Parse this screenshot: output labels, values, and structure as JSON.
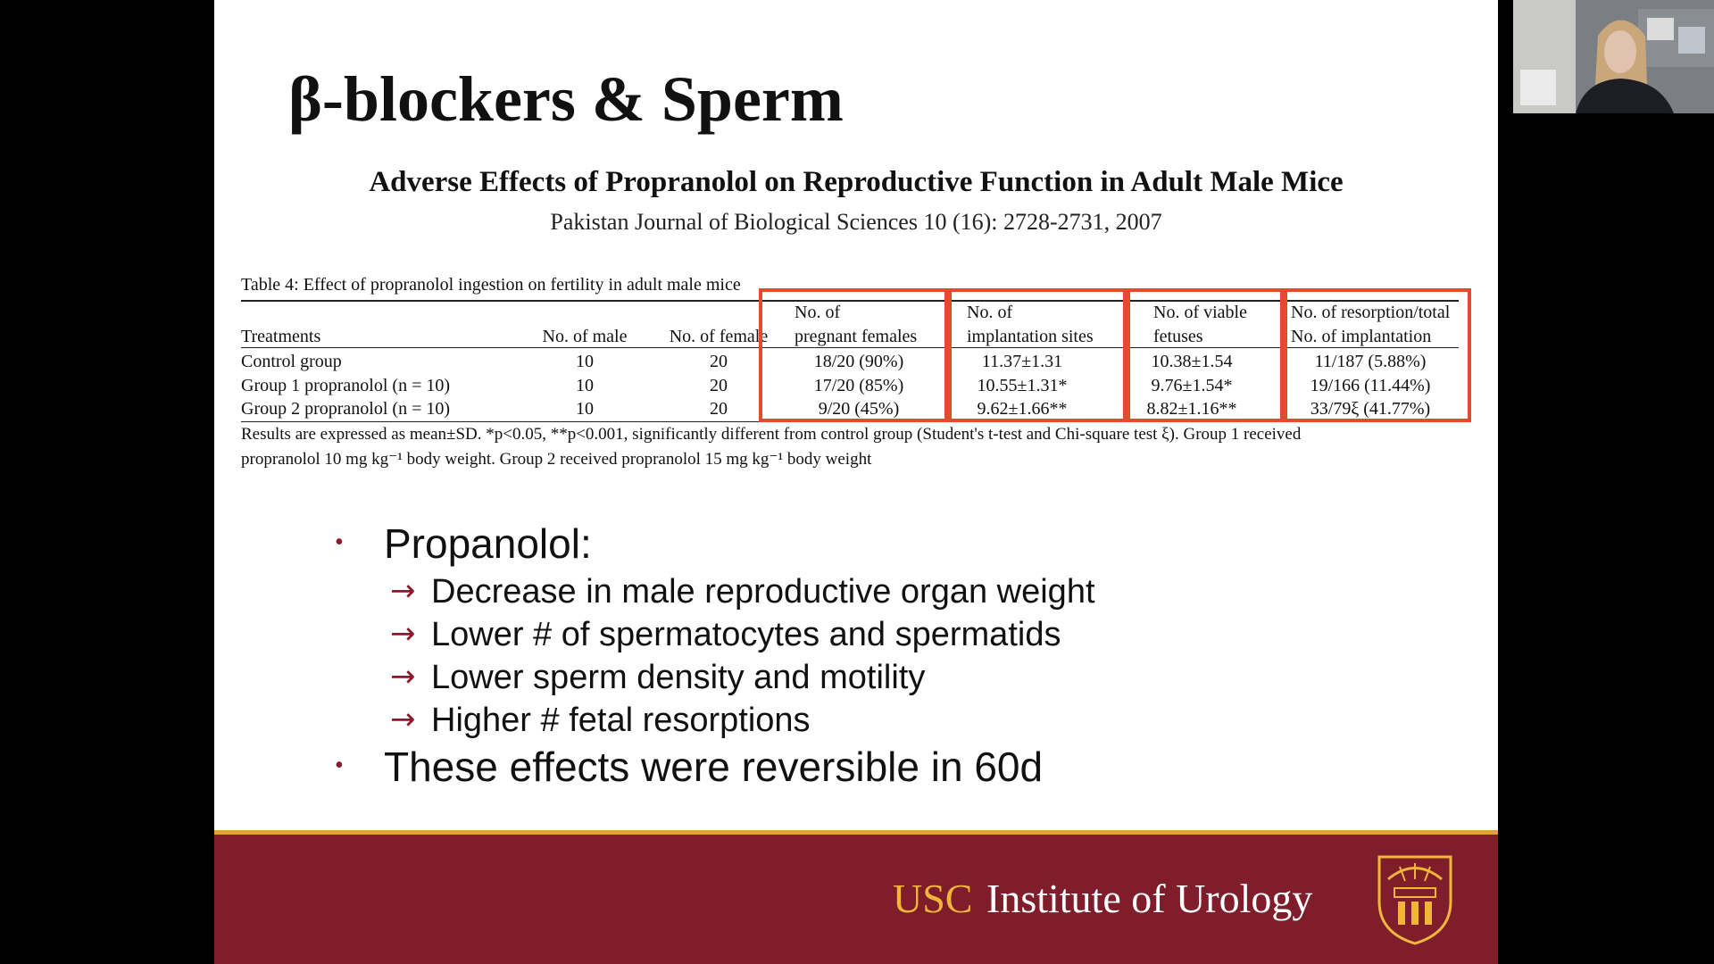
{
  "slide": {
    "title": "β-blockers & Sperm",
    "paper_title": "Adverse Effects of Propranolol on Reproductive Function in Adult Male Mice",
    "paper_citation": "Pakistan Journal of Biological Sciences 10 (16): 2728-2731, 2007",
    "table": {
      "caption": "Table 4: Effect of propranolol ingestion on fertility in adult male mice",
      "headers": {
        "treatments": "Treatments",
        "no_male": "No. of male",
        "no_female": "No. of female",
        "pregnant_1": "No. of",
        "pregnant_2": "pregnant females",
        "implant_1": "No. of",
        "implant_2": "implantation sites",
        "viable_1": "No. of viable",
        "viable_2": "fetuses",
        "resorp_1": "No. of resorption/total",
        "resorp_2": "No. of implantation"
      },
      "rows": [
        {
          "treatment": "Control group",
          "male": "10",
          "female": "20",
          "pregnant": "18/20 (90%)",
          "implantation": "11.37±1.31",
          "viable": "10.38±1.54",
          "resorption": "11/187 (5.88%)"
        },
        {
          "treatment": "Group 1 propranolol (n = 10)",
          "male": "10",
          "female": "20",
          "pregnant": "17/20 (85%)",
          "implantation": "10.55±1.31*",
          "viable": "9.76±1.54*",
          "resorption": "19/166 (11.44%)"
        },
        {
          "treatment": "Group 2 propranolol (n = 10)",
          "male": "10",
          "female": "20",
          "pregnant": "9/20 (45%)",
          "implantation": "9.62±1.66**",
          "viable": "8.82±1.16**",
          "resorption": "33/79ξ (41.77%)"
        }
      ],
      "footnote_1": "Results are expressed as mean±SD. *p<0.05, **p<0.001, significantly different from control group (Student's t-test and Chi-square test ξ). Group 1 received",
      "footnote_2": "propranolol 10 mg kg⁻¹ body weight. Group 2 received propranolol 15 mg kg⁻¹ body weight"
    },
    "bullets": [
      {
        "text": "Propanolol:"
      },
      {
        "text": "These effects were reversible in 60d"
      }
    ],
    "sub_bullets": [
      "Decrease in male reproductive organ weight",
      "Lower # of spermatocytes and spermatids",
      "Lower sperm density and motility",
      "Higher # fetal resorptions"
    ],
    "footer": {
      "usc": "USC",
      "institute": "Institute of Urology"
    }
  },
  "colors": {
    "highlight_box": "#e44a30",
    "footer_band": "#7f1d2b",
    "footer_gold": "#f1b53c",
    "bullet": "#8a1b2a"
  },
  "icons": {
    "arrow": "→",
    "bullet": "•",
    "seal": "usc-seal-icon"
  }
}
